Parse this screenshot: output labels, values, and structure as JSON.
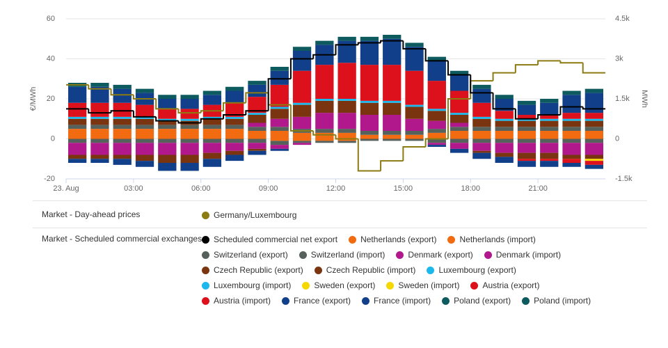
{
  "chart_data": {
    "type": "bar",
    "categories": [
      "23. Aug",
      null,
      null,
      "03:00",
      null,
      null,
      "06:00",
      null,
      null,
      "09:00",
      null,
      null,
      "12:00",
      null,
      null,
      "15:00",
      null,
      null,
      "18:00",
      null,
      null,
      "21:00",
      null,
      null
    ],
    "y_label": "€/MWh",
    "y2_label": "MWh",
    "ylim": [
      -20,
      60
    ],
    "yticks": [
      -20,
      0,
      20,
      40,
      60
    ],
    "y2lim": [
      -1500,
      4500
    ],
    "y2ticks": [
      {
        "value": -1500,
        "label": "-1.5k"
      },
      0,
      {
        "value": 1500,
        "label": "1.5k"
      },
      {
        "value": 3000,
        "label": "3k"
      },
      {
        "value": 4500,
        "label": "4.5k"
      }
    ],
    "grid": true,
    "legend_groups": [
      "Market - Day-ahead prices",
      "Market - Scheduled commercial exchanges"
    ],
    "series": [
      {
        "name": "Germany/Luxembourg",
        "type": "line",
        "step": true,
        "color": "#8c7a12",
        "values": [
          27,
          25,
          22,
          20,
          15,
          13,
          14,
          18,
          23,
          17,
          4,
          2,
          0,
          -16,
          -11,
          -4,
          0,
          20,
          29,
          33,
          37,
          39,
          38,
          33
        ]
      },
      {
        "name": "Scheduled commercial net export",
        "type": "line",
        "step": true,
        "axis": "y2",
        "color": "#000000",
        "values": [
          1125,
          975,
          1050,
          825,
          675,
          600,
          750,
          900,
          1050,
          2250,
          3000,
          3150,
          3525,
          3600,
          3675,
          3375,
          2925,
          2400,
          1725,
          1125,
          750,
          900,
          1200,
          1125
        ]
      },
      {
        "name": "Netherlands (export)",
        "axis": "y2",
        "color": "#f26b10",
        "values": [
          375,
          375,
          375,
          375,
          375,
          375,
          375,
          375,
          300,
          300,
          225,
          225,
          225,
          150,
          150,
          150,
          225,
          300,
          300,
          300,
          300,
          300,
          300,
          300
        ]
      },
      {
        "name": "Netherlands (import)",
        "axis": "y2",
        "color": "#f26b10",
        "values": [
          0,
          0,
          0,
          0,
          0,
          0,
          0,
          0,
          0,
          -75,
          -75,
          -75,
          -75,
          0,
          0,
          0,
          0,
          0,
          0,
          0,
          0,
          0,
          0,
          0
        ]
      },
      {
        "name": "Switzerland (export)",
        "axis": "y2",
        "color": "#56615c",
        "values": [
          150,
          150,
          150,
          150,
          150,
          150,
          150,
          150,
          150,
          150,
          150,
          150,
          150,
          150,
          150,
          150,
          150,
          150,
          150,
          150,
          150,
          150,
          150,
          150
        ]
      },
      {
        "name": "Switzerland (import)",
        "axis": "y2",
        "color": "#56615c",
        "values": [
          -150,
          -150,
          -150,
          -150,
          -150,
          -150,
          -150,
          -150,
          -150,
          -150,
          -75,
          -75,
          -75,
          -75,
          -75,
          -75,
          -150,
          -150,
          -150,
          -150,
          -150,
          -150,
          -150,
          -150
        ]
      },
      {
        "name": "Denmark (export)",
        "axis": "y2",
        "color": "#b0188c",
        "values": [
          0,
          0,
          0,
          0,
          0,
          0,
          0,
          0,
          150,
          300,
          450,
          600,
          600,
          600,
          600,
          450,
          300,
          150,
          0,
          0,
          0,
          0,
          0,
          0
        ]
      },
      {
        "name": "Denmark (import)",
        "axis": "y2",
        "color": "#b0188c",
        "values": [
          -450,
          -450,
          -450,
          -450,
          -450,
          -450,
          -375,
          -300,
          -225,
          -150,
          -75,
          0,
          0,
          0,
          0,
          0,
          -75,
          -225,
          -300,
          -375,
          -375,
          -375,
          -450,
          -450
        ]
      },
      {
        "name": "Czech Republic (export)",
        "axis": "y2",
        "color": "#7a3510",
        "values": [
          225,
          225,
          225,
          225,
          150,
          150,
          225,
          225,
          300,
          375,
          450,
          450,
          450,
          450,
          450,
          450,
          375,
          300,
          300,
          225,
          225,
          225,
          225,
          225
        ]
      },
      {
        "name": "Czech Republic (import)",
        "axis": "y2",
        "color": "#7a3510",
        "values": [
          -150,
          -150,
          -150,
          -225,
          -300,
          -300,
          -225,
          -150,
          -75,
          0,
          0,
          0,
          0,
          0,
          0,
          0,
          0,
          0,
          -75,
          -150,
          -225,
          -225,
          -150,
          -150
        ]
      },
      {
        "name": "Luxembourg (export)",
        "axis": "y2",
        "color": "#1cb8ec",
        "values": [
          75,
          75,
          75,
          75,
          75,
          75,
          75,
          75,
          75,
          75,
          75,
          75,
          75,
          75,
          75,
          75,
          75,
          75,
          75,
          75,
          75,
          75,
          75,
          75
        ]
      },
      {
        "name": "Luxembourg (import)",
        "axis": "y2",
        "color": "#1cb8ec",
        "values": [
          0,
          0,
          0,
          0,
          0,
          0,
          0,
          0,
          0,
          0,
          0,
          0,
          0,
          0,
          0,
          0,
          0,
          0,
          0,
          0,
          0,
          0,
          0,
          0
        ]
      },
      {
        "name": "Sweden (export)",
        "axis": "y2",
        "color": "#f5d800",
        "values": [
          0,
          0,
          0,
          0,
          0,
          0,
          0,
          0,
          0,
          0,
          0,
          0,
          0,
          0,
          0,
          0,
          0,
          0,
          0,
          0,
          0,
          0,
          0,
          0
        ]
      },
      {
        "name": "Sweden (import)",
        "axis": "y2",
        "color": "#f5d800",
        "values": [
          0,
          0,
          0,
          0,
          0,
          0,
          0,
          0,
          0,
          0,
          0,
          0,
          0,
          0,
          0,
          0,
          0,
          0,
          0,
          0,
          0,
          0,
          0,
          -75
        ]
      },
      {
        "name": "Austria (export)",
        "axis": "y2",
        "color": "#dd111b",
        "values": [
          525,
          525,
          525,
          450,
          375,
          375,
          450,
          525,
          600,
          825,
          1200,
          1275,
          1350,
          1350,
          1350,
          1275,
          1050,
          825,
          525,
          300,
          150,
          150,
          225,
          225
        ]
      },
      {
        "name": "Austria (import)",
        "axis": "y2",
        "color": "#dd111b",
        "values": [
          0,
          0,
          0,
          0,
          0,
          0,
          0,
          0,
          0,
          0,
          0,
          0,
          0,
          0,
          0,
          0,
          0,
          0,
          0,
          0,
          -75,
          -75,
          -150,
          -150
        ]
      },
      {
        "name": "France (export)",
        "axis": "y2",
        "color": "#123f8a",
        "values": [
          600,
          600,
          525,
          450,
          375,
          375,
          375,
          450,
          450,
          525,
          750,
          750,
          825,
          900,
          975,
          900,
          750,
          600,
          525,
          450,
          375,
          450,
          675,
          750
        ]
      },
      {
        "name": "France (import)",
        "axis": "y2",
        "color": "#123f8a",
        "values": [
          -150,
          -150,
          -225,
          -225,
          -300,
          -300,
          -300,
          -225,
          -150,
          -75,
          0,
          0,
          0,
          0,
          0,
          0,
          -75,
          -150,
          -225,
          -225,
          -225,
          -225,
          -150,
          -150
        ]
      },
      {
        "name": "Poland (export)",
        "axis": "y2",
        "color": "#0d5b5f",
        "values": [
          150,
          150,
          150,
          150,
          150,
          150,
          150,
          150,
          150,
          150,
          150,
          150,
          150,
          150,
          150,
          150,
          150,
          150,
          150,
          150,
          150,
          150,
          150,
          150
        ]
      },
      {
        "name": "Poland (import)",
        "axis": "y2",
        "color": "#0d5b5f",
        "values": [
          0,
          0,
          0,
          0,
          0,
          0,
          0,
          0,
          0,
          0,
          0,
          0,
          0,
          0,
          0,
          0,
          0,
          0,
          0,
          0,
          0,
          0,
          0,
          0
        ]
      }
    ]
  }
}
